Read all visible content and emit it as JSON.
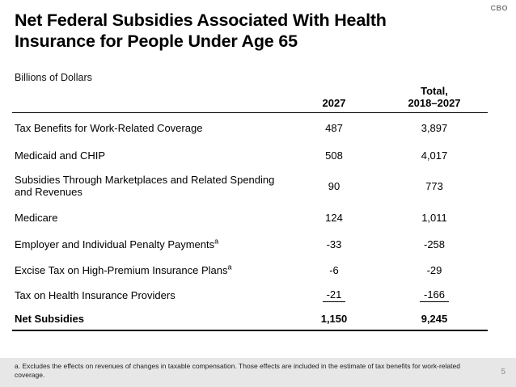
{
  "slide": {
    "brand": "CBO",
    "title_line1": "Net Federal Subsidies Associated With Health",
    "title_line2": "Insurance for People Under Age 65",
    "units_label": "Billions of Dollars",
    "page_number": "5"
  },
  "table": {
    "headers": {
      "year": "2027",
      "total_line1": "Total,",
      "total_line2": "2018–2027"
    },
    "rows": [
      {
        "label": "Tax Benefits for Work-Related Coverage",
        "val_2027": "487",
        "val_total": "3,897"
      },
      {
        "label": "Medicaid and CHIP",
        "val_2027": "508",
        "val_total": "4,017"
      },
      {
        "label": "Subsidies Through Marketplaces and Related Spending and Revenues",
        "val_2027": "90",
        "val_total": "773"
      },
      {
        "label": "Medicare",
        "val_2027": "124",
        "val_total": "1,011"
      },
      {
        "label": "Employer and Individual Penalty Payments",
        "sup": "a",
        "val_2027": "-33",
        "val_total": "-258"
      },
      {
        "label": "Excise Tax on High-Premium Insurance Plans",
        "sup": "a",
        "val_2027": "-6",
        "val_total": "-29"
      },
      {
        "label": "Tax on Health Insurance Providers",
        "val_2027": "-21",
        "val_total": "-166"
      },
      {
        "label": "Net Subsidies",
        "val_2027": "1,150",
        "val_total": "9,245"
      }
    ]
  },
  "footnote": {
    "text": "a. Excludes the effects on revenues of changes in taxable compensation. Those effects are included in the estimate of tax benefits for work-related coverage."
  },
  "colors": {
    "background": "#ffffff",
    "text": "#000000",
    "brand_gray": "#7d7d7d",
    "footer_band": "#e7e7e7",
    "page_number_gray": "#8c8c8c"
  }
}
